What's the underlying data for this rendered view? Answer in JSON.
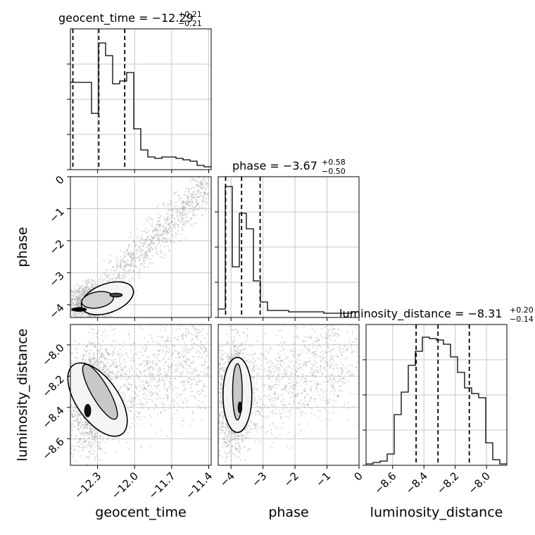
{
  "chart_data": {
    "type": "corner",
    "parameters": [
      "geocent_time",
      "phase",
      "luminosity_distance"
    ],
    "axis_labels": {
      "x": [
        "geocent_time",
        "phase",
        "luminosity_distance"
      ],
      "y": [
        "phase",
        "luminosity_distance"
      ]
    },
    "ranges": {
      "geocent_time": [
        -12.52,
        -11.38
      ],
      "phase": [
        -4.4,
        0.0
      ],
      "luminosity_distance": [
        -8.77,
        -7.87
      ]
    },
    "ticks": {
      "geocent_time": [
        -12.3,
        -12.0,
        -11.7,
        -11.4
      ],
      "phase": [
        -4,
        -3,
        -2,
        -1,
        0
      ],
      "luminosity_distance": [
        -8.6,
        -8.4,
        -8.2,
        -8.0
      ]
    },
    "tick_labels": {
      "geocent_time": [
        "−12.3",
        "−12.0",
        "−11.7",
        "−11.4"
      ],
      "phase": [
        "−4",
        "−3",
        "−2",
        "−1",
        "0"
      ],
      "luminosity_distance": [
        "−8.6",
        "−8.4",
        "−8.2",
        "−8.0"
      ]
    },
    "titles": [
      {
        "parameter": "geocent_time",
        "text": "geocent_time = −12.29",
        "plus": "+0.21",
        "minus": "−0.21",
        "median": -12.29,
        "lower": -12.5,
        "upper": -12.08
      },
      {
        "parameter": "phase",
        "text": "phase = −3.67",
        "plus": "+0.58",
        "minus": "−0.50",
        "median": -3.67,
        "lower": -4.17,
        "upper": -3.09
      },
      {
        "parameter": "luminosity_distance",
        "text": "luminosity_distance = −8.31",
        "plus": "+0.20",
        "minus": "−0.14",
        "median": -8.31,
        "lower": -8.45,
        "upper": -8.11
      }
    ],
    "histograms": {
      "geocent_time": [
        0.62,
        0.62,
        0.62,
        0.4,
        0.9,
        0.81,
        0.61,
        0.63,
        0.69,
        0.29,
        0.14,
        0.09,
        0.08,
        0.09,
        0.09,
        0.08,
        0.07,
        0.06,
        0.03,
        0.02
      ],
      "phase": [
        0.06,
        0.93,
        0.36,
        0.74,
        0.63,
        0.26,
        0.11,
        0.05,
        0.05,
        0.05,
        0.04,
        0.04,
        0.04,
        0.04,
        0.04,
        0.03,
        0.03,
        0.03,
        0.03,
        0.04
      ],
      "luminosity_distance": [
        0.01,
        0.02,
        0.03,
        0.08,
        0.36,
        0.52,
        0.71,
        0.81,
        0.91,
        0.9,
        0.89,
        0.86,
        0.77,
        0.66,
        0.55,
        0.51,
        0.48,
        0.16,
        0.04,
        0.01
      ]
    },
    "grid": true,
    "scatter_color": "#999999",
    "line_color": "#000000"
  }
}
